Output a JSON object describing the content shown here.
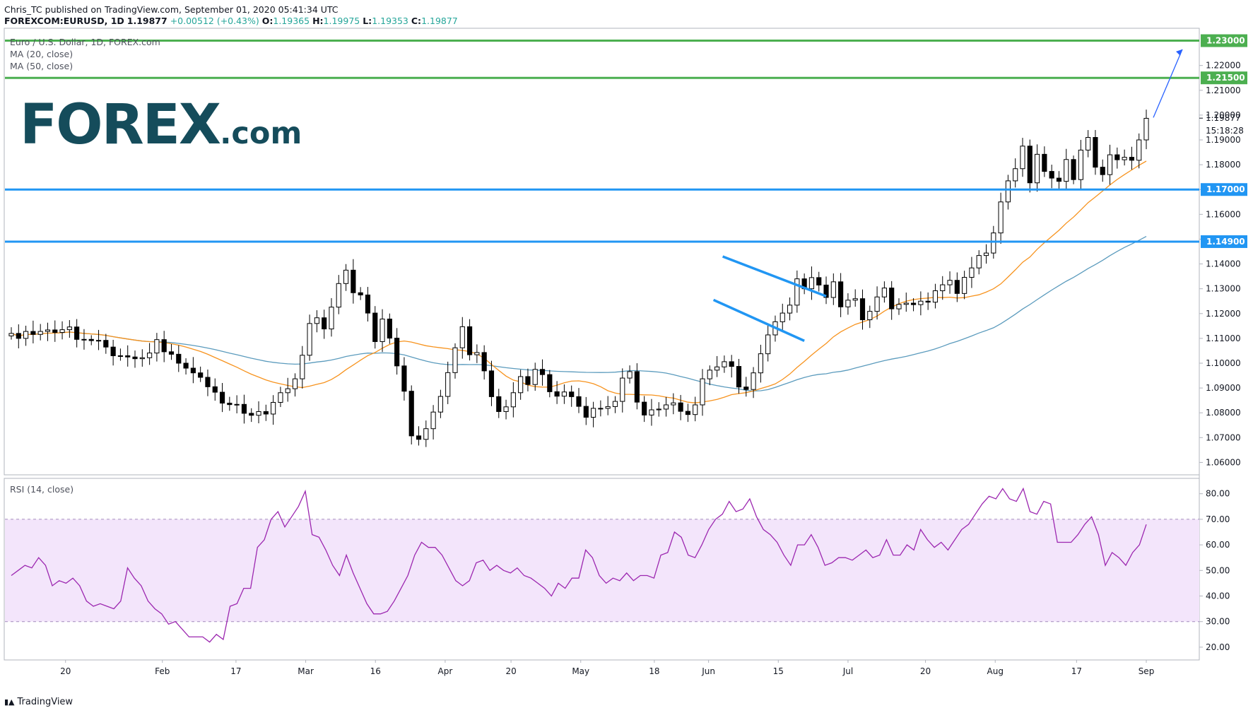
{
  "header": {
    "line1": "Chris_TC published on TradingView.com, September 01, 2020 05:41:34 UTC",
    "symbol": "FOREXCOM:EURUSD, 1D",
    "last": "1.19877",
    "change": "+0.00512 (+0.43%)",
    "o_label": "O:",
    "o": "1.19365",
    "h_label": "H:",
    "h": "1.19975",
    "l_label": "L:",
    "l": "1.19353",
    "c_label": "C:",
    "c": "1.19877"
  },
  "legend": {
    "title": "Euro / U.S. Dollar, 1D, FOREX.com",
    "ma20": "MA (20, close)",
    "ma50": "MA (50, close)",
    "rsi": "RSI (14, close)"
  },
  "logo": {
    "main": "FOREX",
    "suffix": ".com"
  },
  "footer": {
    "brand": "TradingView"
  },
  "colors": {
    "up_fill": "#ffffff",
    "down_fill": "#000000",
    "ma20": "#f7931e",
    "ma50": "#5b9bbd",
    "support": "#2196f3",
    "resistance": "#4caf50",
    "rsi_line": "#9c27b0",
    "rsi_band": "#f3e5fb",
    "logo": "#154c5b"
  },
  "chart_data": [
    {
      "type": "candlestick",
      "title": "Euro / U.S. Dollar, 1D, FOREX.com",
      "ylim": [
        1.055,
        1.235
      ],
      "y_ticks": [
        "1.06000",
        "1.07000",
        "1.08000",
        "1.09000",
        "1.10000",
        "1.11000",
        "1.12000",
        "1.13000",
        "1.14000",
        "1.15000",
        "1.16000",
        "1.17000",
        "1.18000",
        "1.19000",
        "1.20000",
        "1.21000",
        "1.22000"
      ],
      "x_tick_labels": [
        "20",
        "Feb",
        "17",
        "Mar",
        "16",
        "Apr",
        "20",
        "May",
        "18",
        "Jun",
        "15",
        "Jul",
        "20",
        "Aug",
        "17",
        "Sep"
      ],
      "horizontal_levels": [
        {
          "value": 1.23,
          "label": "1.23000",
          "color": "#4caf50"
        },
        {
          "value": 1.215,
          "label": "1.21500",
          "color": "#4caf50"
        },
        {
          "value": 1.17,
          "label": "1.17000",
          "color": "#2196f3"
        },
        {
          "value": 1.149,
          "label": "1.14900",
          "color": "#2196f3"
        }
      ],
      "last_price_label": "1.19877",
      "countdown_label": "15:18:28",
      "closes": [
        1.112,
        1.11,
        1.1128,
        1.1116,
        1.1128,
        1.1134,
        1.1124,
        1.1135,
        1.1146,
        1.1096,
        1.1096,
        1.1091,
        1.1092,
        1.1065,
        1.103,
        1.103,
        1.1025,
        1.1018,
        1.1022,
        1.1041,
        1.1095,
        1.1046,
        1.1036,
        1.1,
        1.098,
        1.0961,
        1.0943,
        1.0905,
        1.0883,
        1.0839,
        1.0833,
        1.0834,
        1.0798,
        1.079,
        1.0805,
        1.0795,
        1.0842,
        1.0881,
        1.0897,
        1.0937,
        1.1032,
        1.116,
        1.1183,
        1.1138,
        1.1226,
        1.1321,
        1.1375,
        1.1284,
        1.1275,
        1.1202,
        1.1087,
        1.1178,
        1.1101,
        1.0989,
        1.0887,
        1.0707,
        1.0693,
        1.0736,
        1.0803,
        1.0866,
        1.0962,
        1.1062,
        1.1147,
        1.1034,
        1.1043,
        1.0969,
        1.0865,
        1.0805,
        1.0824,
        1.0881,
        1.0946,
        1.0914,
        1.0975,
        1.0954,
        1.0885,
        1.0867,
        1.0884,
        1.0865,
        1.0826,
        1.0782,
        1.0818,
        1.0818,
        1.0825,
        1.0846,
        1.094,
        1.0966,
        1.0843,
        1.0791,
        1.0812,
        1.0815,
        1.0832,
        1.084,
        1.0806,
        1.0793,
        1.0832,
        1.0937,
        1.0972,
        1.0985,
        1.1006,
        1.0987,
        1.0904,
        1.0894,
        1.0961,
        1.1038,
        1.1114,
        1.1167,
        1.1202,
        1.1234,
        1.134,
        1.13,
        1.1345,
        1.1315,
        1.1265,
        1.1328,
        1.1227,
        1.1254,
        1.126,
        1.1175,
        1.1209,
        1.1267,
        1.1303,
        1.1219,
        1.1237,
        1.1242,
        1.1236,
        1.125,
        1.1246,
        1.1292,
        1.1316,
        1.1334,
        1.1281,
        1.1346,
        1.1384,
        1.1434,
        1.1444,
        1.1525,
        1.165,
        1.1735,
        1.1784,
        1.1875,
        1.1727,
        1.1842,
        1.1773,
        1.1746,
        1.1733,
        1.1821,
        1.174,
        1.1859,
        1.191,
        1.179,
        1.176,
        1.184,
        1.182,
        1.183,
        1.1818,
        1.19,
        1.1987
      ],
      "series": [
        {
          "name": "MA (20, close)",
          "color": "#f7931e"
        },
        {
          "name": "MA (50, close)",
          "color": "#5b9bbd"
        }
      ],
      "annotations": [
        {
          "type": "trend_channel",
          "description": "falling flag (upper and lower blue trendlines)",
          "start_date": "Jun 10",
          "end_date": "Jul 1"
        },
        {
          "type": "arrow",
          "description": "projected move higher toward 1.23000"
        }
      ]
    },
    {
      "type": "line",
      "title": "RSI (14, close)",
      "ylim": [
        15,
        86
      ],
      "y_ticks": [
        "20.00",
        "30.00",
        "40.00",
        "50.00",
        "60.00",
        "70.00",
        "80.00"
      ],
      "band": [
        30,
        70
      ],
      "values": [
        48,
        50,
        52,
        51,
        55,
        52,
        44,
        46,
        45,
        47,
        44,
        38,
        36,
        37,
        36,
        35,
        38,
        51,
        47,
        44,
        38,
        35,
        33,
        29,
        30,
        27,
        24,
        24,
        24,
        22,
        25,
        23,
        36,
        37,
        43,
        43,
        59,
        62,
        70,
        73,
        67,
        71,
        75,
        81,
        64,
        63,
        58,
        52,
        48,
        56,
        49,
        43,
        37,
        33,
        33,
        34,
        38,
        43,
        48,
        56,
        61,
        59,
        59,
        56,
        51,
        46,
        44,
        46,
        53,
        54,
        50,
        52,
        50,
        49,
        51,
        48,
        47,
        45,
        43,
        40,
        45,
        43,
        47,
        47,
        58,
        55,
        48,
        45,
        47,
        46,
        49,
        46,
        48,
        48,
        47,
        56,
        57,
        65,
        63,
        56,
        55,
        60,
        66,
        70,
        72,
        77,
        73,
        74,
        78,
        71,
        66,
        64,
        61,
        56,
        52,
        60,
        60,
        64,
        59,
        52,
        53,
        55,
        55,
        54,
        56,
        58,
        55,
        56,
        62,
        56,
        56,
        60,
        58,
        66,
        62,
        59,
        61,
        58,
        62,
        66,
        68,
        72,
        76,
        79,
        78,
        82,
        78,
        77,
        82,
        73,
        72,
        77,
        76,
        61,
        61,
        61,
        64,
        68,
        71,
        64,
        52,
        57,
        55,
        52,
        57,
        60,
        68
      ]
    }
  ]
}
